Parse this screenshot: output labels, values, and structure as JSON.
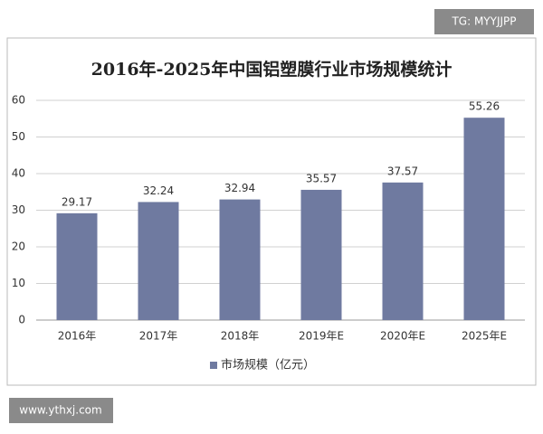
{
  "chart_data": {
    "type": "bar",
    "title": "2016年-2025年中国铝塑膜行业市场规模统计",
    "categories": [
      "2016年",
      "2017年",
      "2018年",
      "2019年E",
      "2020年E",
      "2025年E"
    ],
    "series": [
      {
        "name": "市场规模（亿元）",
        "color": "#6f7aa0",
        "values": [
          29.17,
          32.24,
          32.94,
          35.57,
          37.57,
          55.26
        ]
      }
    ],
    "ylim": [
      0,
      60
    ],
    "yticks": [
      0,
      10,
      20,
      30,
      40,
      50,
      60
    ],
    "grid": true,
    "legend": "bottom"
  },
  "watermark_top": "TG: MYYJJPP",
  "watermark_bottom": "www.ythxj.com"
}
